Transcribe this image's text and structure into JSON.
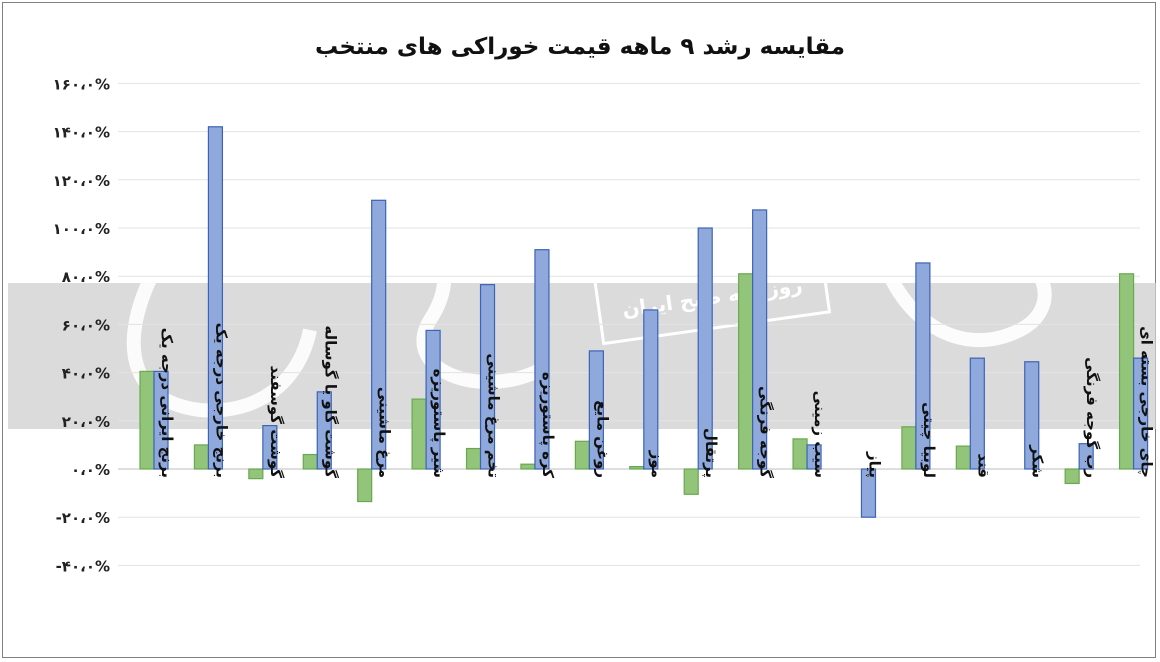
{
  "chart_data": {
    "type": "bar",
    "title": "مقایسه رشد ۹ ماهه قیمت خوراکی های منتخب",
    "xlabel": "",
    "ylabel": "",
    "ylim": [
      -40,
      160
    ],
    "y_ticks": [
      -40,
      -20,
      0,
      20,
      40,
      60,
      80,
      100,
      120,
      140,
      160
    ],
    "y_tick_labels": [
      "-۴۰،۰%",
      "-۲۰،۰%",
      "۰،۰%",
      "۲۰،۰%",
      "۴۰،۰%",
      "۶۰،۰%",
      "۸۰،۰%",
      "۱۰۰،۰%",
      "۱۲۰،۰%",
      "۱۴۰،۰%",
      "۱۶۰،۰%"
    ],
    "grid": true,
    "legend": "none",
    "categories": [
      "برنج ایرانی درجه یک",
      "برنج خارجی درجه یک",
      "گوشت گوسفند",
      "گوشت گاو یا گوساله",
      "مرغ ماشینی",
      "شیر پاستوریزه",
      "تخم مرغ ماشینی",
      "کره پاستوریزه",
      "روغن مایع",
      "موز",
      "پرتقال",
      "گوجه فرنگی",
      "سیب زمینی",
      "پیاز",
      "لوبیا چیتی",
      "قند",
      "شکر",
      "رب گوجه فرنگی",
      "چای خارجی بسته ای"
    ],
    "series": [
      {
        "values": [
          40.5,
          10,
          -4,
          6,
          -13.5,
          29,
          8.5,
          2,
          11.5,
          1,
          -10.5,
          81,
          12.5,
          0,
          17.5,
          9.5,
          0,
          -6,
          81
        ],
        "color": "#92c47a"
      },
      {
        "values": [
          40.5,
          142,
          18,
          32,
          111.5,
          57.5,
          76.5,
          91,
          49,
          66,
          100,
          107.5,
          10,
          -20,
          85.5,
          46,
          44.5,
          10.5,
          46
        ],
        "color": "#8fa9dc"
      }
    ]
  },
  "watermark": {
    "text": "روزنامه صبح ایران",
    "big_text": "دنیای اقتصاد"
  }
}
